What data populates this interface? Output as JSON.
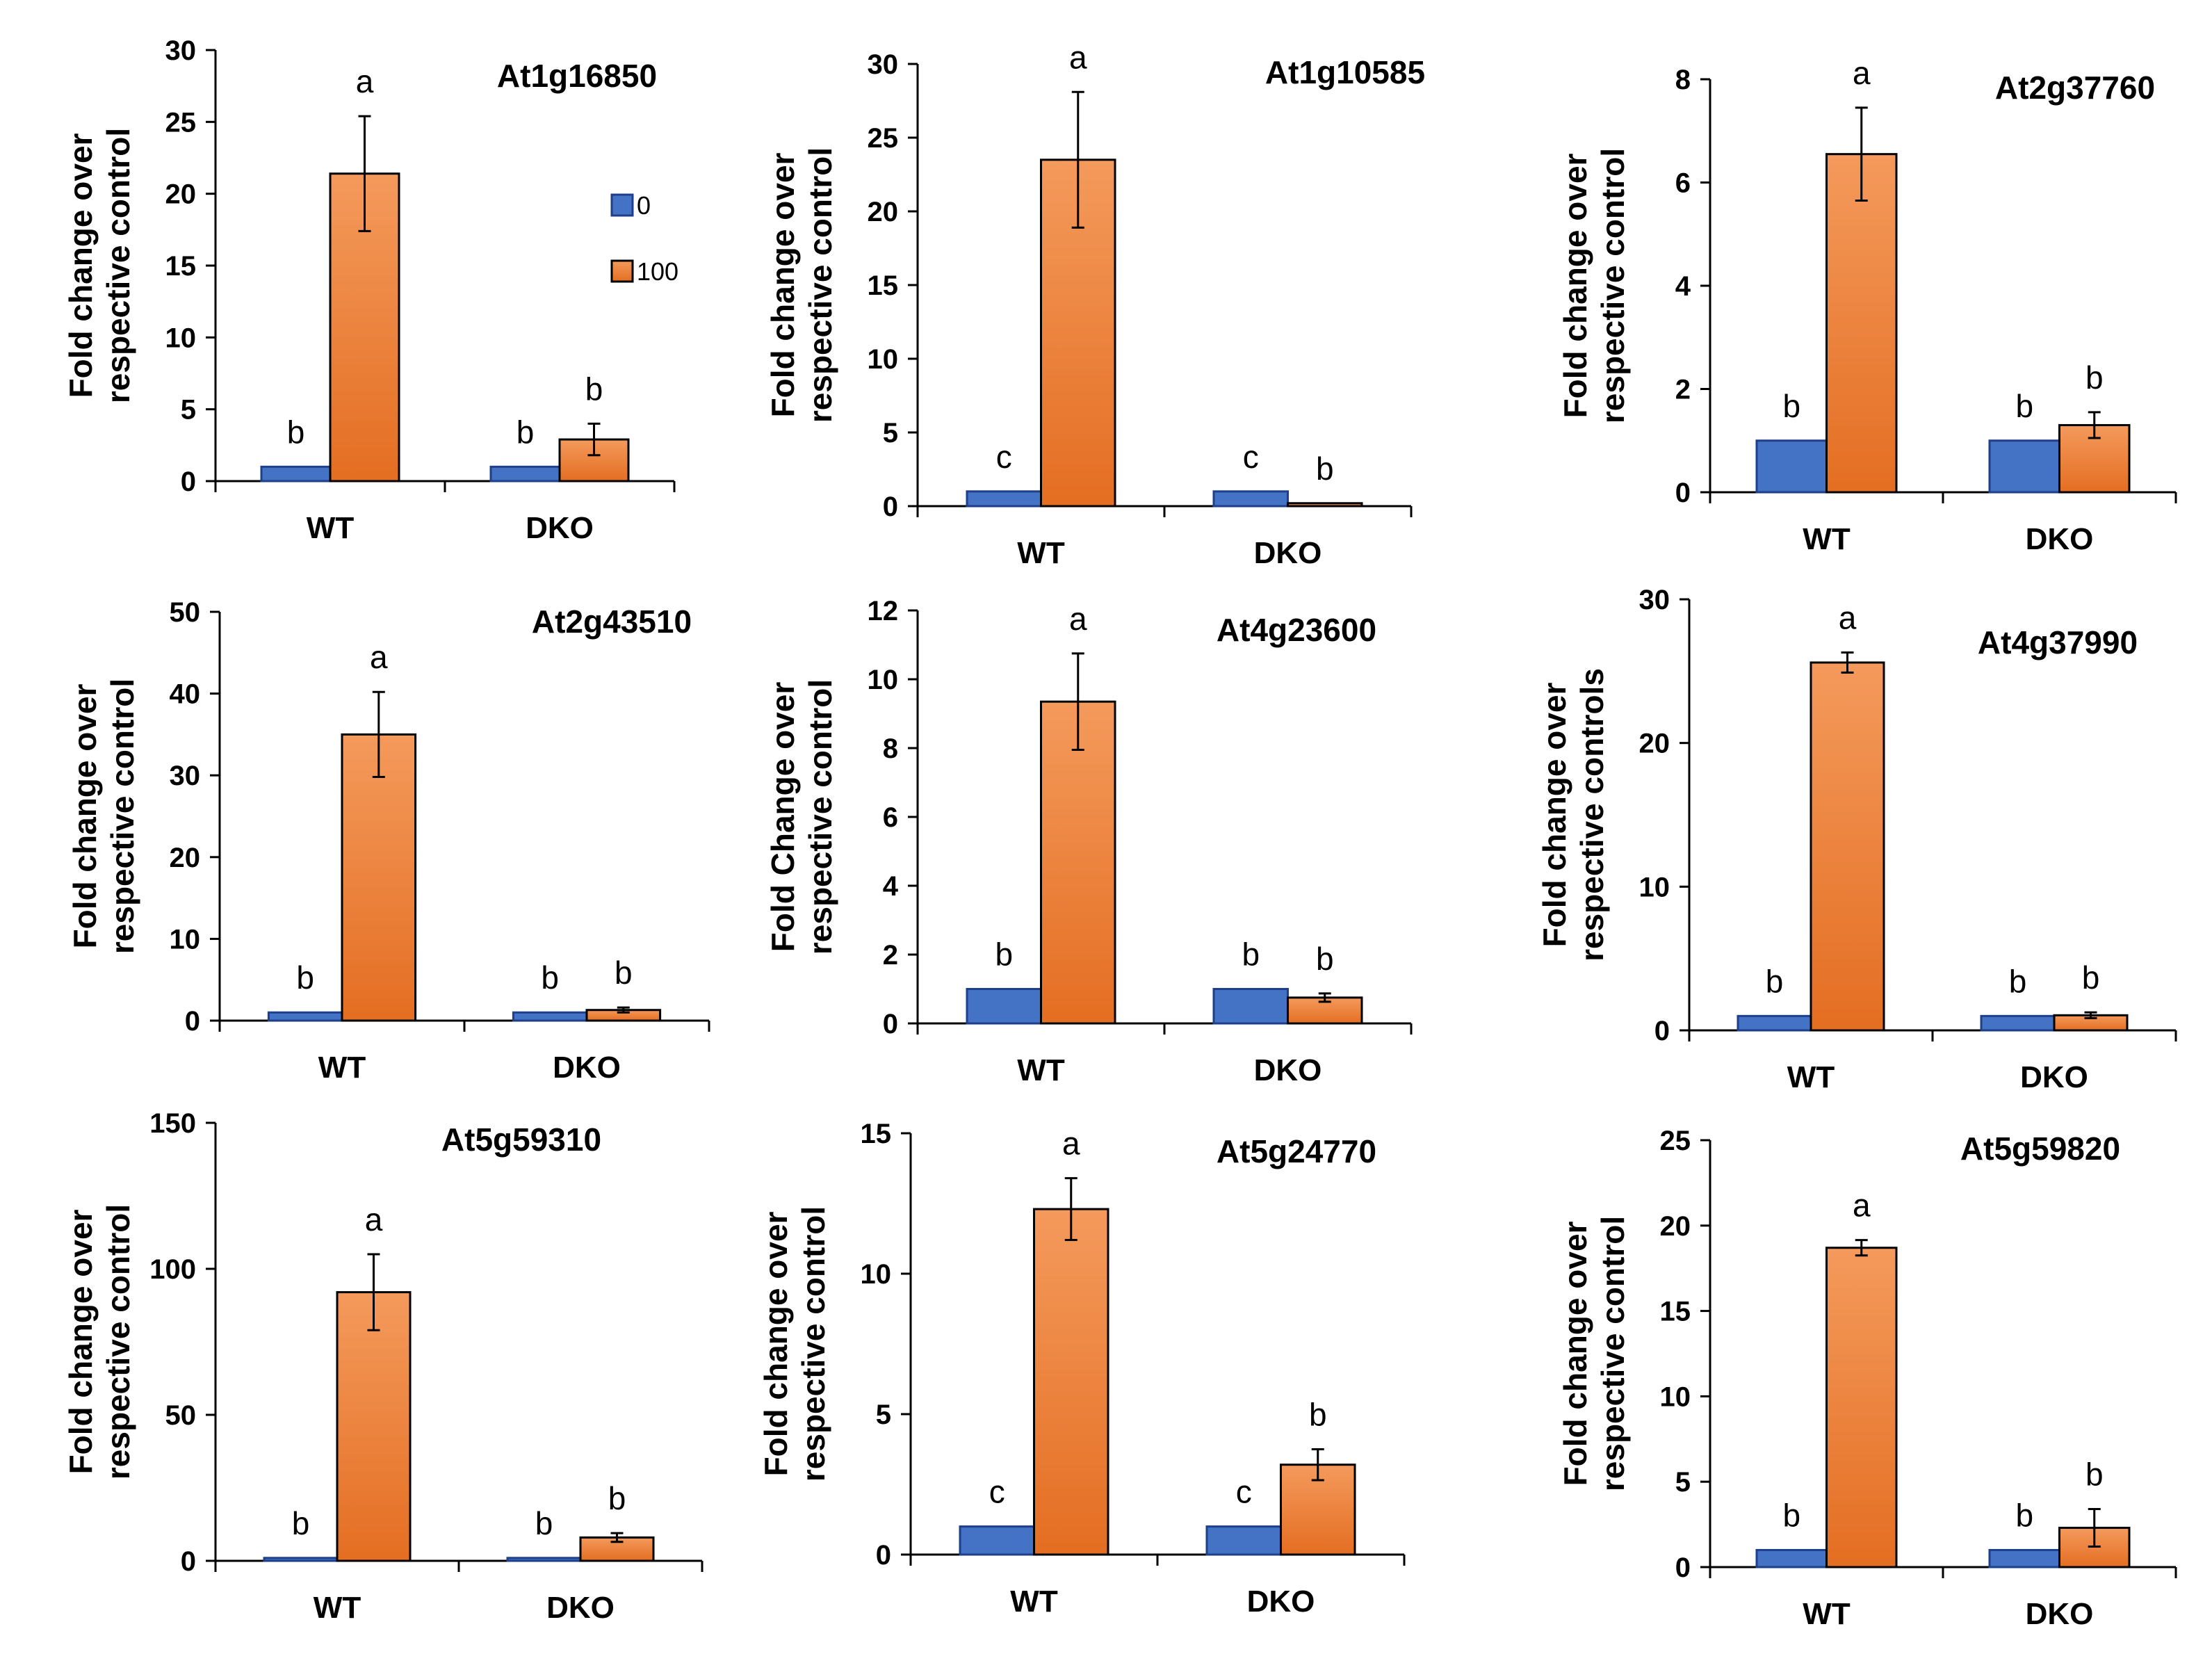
{
  "figure": {
    "rows": 3,
    "cols": 3
  },
  "colors": {
    "series_0_fill": "#4472c4",
    "series_0_stroke": "#1e3f8a",
    "series_100_fill_top": "#f49a5c",
    "series_100_fill_bottom": "#e46e22",
    "series_100_stroke": "#000000"
  },
  "chart_data": [
    {
      "type": "bar",
      "title": "At1g16850",
      "ylabel": [
        "Fold change over",
        "respective control"
      ],
      "categories": [
        "WT",
        "DKO"
      ],
      "series": [
        {
          "name": "0",
          "values": [
            1,
            1
          ],
          "errors": [
            0,
            0
          ],
          "letters": [
            "b",
            "b"
          ]
        },
        {
          "name": "100",
          "values": [
            21.4,
            2.9
          ],
          "errors": [
            4.0,
            1.1
          ],
          "letters": [
            "a",
            "b"
          ]
        }
      ],
      "ylim": [
        0,
        30
      ],
      "yticks": [
        0,
        5,
        10,
        15,
        20,
        25,
        30
      ],
      "legend": {
        "entries": [
          "0",
          "100"
        ],
        "placement": "upper-middle"
      }
    },
    {
      "type": "bar",
      "title": "At1g10585",
      "ylabel": [
        "Fold change over",
        "respective control"
      ],
      "categories": [
        "WT",
        "DKO"
      ],
      "series": [
        {
          "name": "0",
          "values": [
            1,
            1
          ],
          "errors": [
            0,
            0
          ],
          "letters": [
            "c",
            "c"
          ]
        },
        {
          "name": "100",
          "values": [
            23.5,
            0.2
          ],
          "errors": [
            4.6,
            0
          ],
          "letters": [
            "a",
            "b"
          ]
        }
      ],
      "ylim": [
        0,
        30
      ],
      "yticks": [
        0,
        5,
        10,
        15,
        20,
        25,
        30
      ]
    },
    {
      "type": "bar",
      "title": "At2g37760",
      "ylabel": [
        "Fold change over",
        "respective control"
      ],
      "categories": [
        "WT",
        "DKO"
      ],
      "series": [
        {
          "name": "0",
          "values": [
            1,
            1
          ],
          "errors": [
            0,
            0
          ],
          "letters": [
            "b",
            "b"
          ]
        },
        {
          "name": "100",
          "values": [
            6.55,
            1.3
          ],
          "errors": [
            0.9,
            0.25
          ],
          "letters": [
            "a",
            "b"
          ]
        }
      ],
      "ylim": [
        0,
        8
      ],
      "yticks": [
        0,
        2,
        4,
        6,
        8
      ]
    },
    {
      "type": "bar",
      "title": "At2g43510",
      "ylabel": [
        "Fold change over",
        "respective control"
      ],
      "categories": [
        "WT",
        "DKO"
      ],
      "series": [
        {
          "name": "0",
          "values": [
            1,
            1
          ],
          "errors": [
            0,
            0
          ],
          "letters": [
            "b",
            "b"
          ]
        },
        {
          "name": "100",
          "values": [
            35,
            1.3
          ],
          "errors": [
            5.2,
            0.3
          ],
          "letters": [
            "a",
            "b"
          ]
        }
      ],
      "ylim": [
        0,
        50
      ],
      "yticks": [
        0,
        10,
        20,
        30,
        40,
        50
      ]
    },
    {
      "type": "bar",
      "title": "At4g23600",
      "ylabel": [
        "Fold Change over",
        "respective control"
      ],
      "categories": [
        "WT",
        "DKO"
      ],
      "series": [
        {
          "name": "0",
          "values": [
            1,
            1
          ],
          "errors": [
            0,
            0
          ],
          "letters": [
            "b",
            "b"
          ]
        },
        {
          "name": "100",
          "values": [
            9.35,
            0.75
          ],
          "errors": [
            1.4,
            0.12
          ],
          "letters": [
            "a",
            "b"
          ]
        }
      ],
      "ylim": [
        0,
        12
      ],
      "yticks": [
        0,
        2,
        4,
        6,
        8,
        10,
        12
      ]
    },
    {
      "type": "bar",
      "title": "At4g37990",
      "ylabel": [
        "Fold change over",
        "respective controls"
      ],
      "categories": [
        "WT",
        "DKO"
      ],
      "series": [
        {
          "name": "0",
          "values": [
            1,
            1
          ],
          "errors": [
            0,
            0
          ],
          "letters": [
            "b",
            "b"
          ]
        },
        {
          "name": "100",
          "values": [
            25.6,
            1.05
          ],
          "errors": [
            0.7,
            0.2
          ],
          "letters": [
            "a",
            "b"
          ]
        }
      ],
      "ylim": [
        0,
        30
      ],
      "yticks": [
        0,
        10,
        20,
        30
      ]
    },
    {
      "type": "bar",
      "title": "At5g59310",
      "ylabel": [
        "Fold change over",
        "respective control"
      ],
      "categories": [
        "WT",
        "DKO"
      ],
      "series": [
        {
          "name": "0",
          "values": [
            1,
            1
          ],
          "errors": [
            0,
            0
          ],
          "letters": [
            "b",
            "b"
          ]
        },
        {
          "name": "100",
          "values": [
            92,
            8
          ],
          "errors": [
            13,
            1.5
          ],
          "letters": [
            "a",
            "b"
          ]
        }
      ],
      "ylim": [
        0,
        150
      ],
      "yticks": [
        0,
        50,
        100,
        150
      ]
    },
    {
      "type": "bar",
      "title": "At5g24770",
      "ylabel": [
        "Fold change over",
        "respective control"
      ],
      "categories": [
        "WT",
        "DKO"
      ],
      "series": [
        {
          "name": "0",
          "values": [
            1,
            1
          ],
          "errors": [
            0,
            0
          ],
          "letters": [
            "c",
            "c"
          ]
        },
        {
          "name": "100",
          "values": [
            12.3,
            3.2
          ],
          "errors": [
            1.1,
            0.55
          ],
          "letters": [
            "a",
            "b"
          ]
        }
      ],
      "ylim": [
        0,
        15
      ],
      "yticks": [
        0,
        5,
        10,
        15
      ]
    },
    {
      "type": "bar",
      "title": "At5g59820",
      "ylabel": [
        "Fold change over",
        "respective control"
      ],
      "categories": [
        "WT",
        "DKO"
      ],
      "series": [
        {
          "name": "0",
          "values": [
            1,
            1
          ],
          "errors": [
            0,
            0
          ],
          "letters": [
            "b",
            "b"
          ]
        },
        {
          "name": "100",
          "values": [
            18.7,
            2.3
          ],
          "errors": [
            0.45,
            1.1
          ],
          "letters": [
            "a",
            "b"
          ]
        }
      ],
      "ylim": [
        0,
        25
      ],
      "yticks": [
        0,
        5,
        10,
        15,
        20,
        25
      ]
    }
  ]
}
